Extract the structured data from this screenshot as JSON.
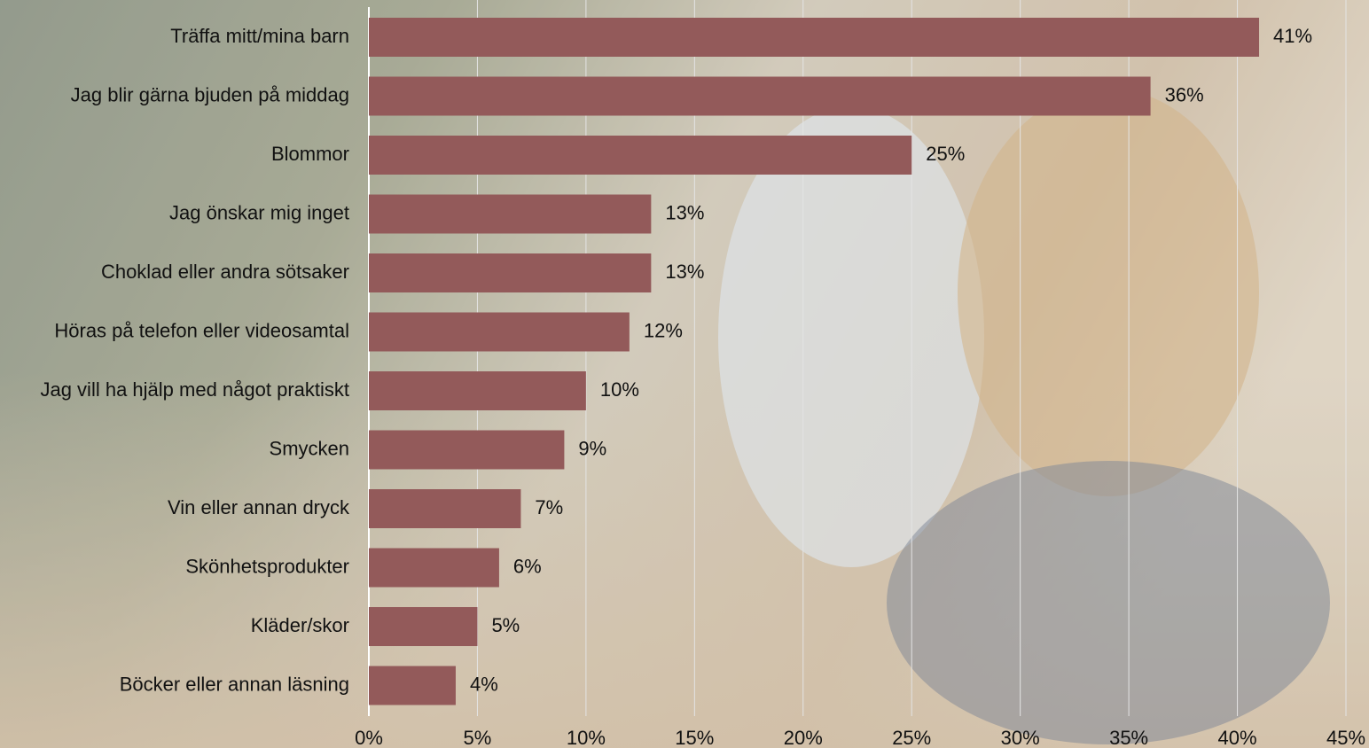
{
  "chart_data": {
    "type": "bar",
    "orientation": "horizontal",
    "categories": [
      "Träffa mitt/mina barn",
      "Jag blir gärna bjuden på middag",
      "Blommor",
      "Jag önskar mig inget",
      "Choklad eller andra sötsaker",
      "Höras på telefon eller videosamtal",
      "Jag vill ha hjälp med något praktiskt",
      "Smycken",
      "Vin eller annan dryck",
      "Skönhetsprodukter",
      "Kläder/skor",
      "Böcker eller annan läsning"
    ],
    "values": [
      41,
      36,
      25,
      13,
      13,
      12,
      10,
      9,
      7,
      6,
      5,
      4
    ],
    "value_labels": [
      "41%",
      "36%",
      "25%",
      "13%",
      "13%",
      "12%",
      "10%",
      "9%",
      "7%",
      "6%",
      "5%",
      "4%"
    ],
    "color": "#935a5a",
    "xlim": [
      0,
      45
    ],
    "xticks": [
      {
        "value": 0,
        "label": "0%"
      },
      {
        "value": 5,
        "label": "5%"
      },
      {
        "value": 10,
        "label": "10%"
      },
      {
        "value": 15,
        "label": "15%"
      },
      {
        "value": 20,
        "label": "20%"
      },
      {
        "value": 25,
        "label": "25%"
      },
      {
        "value": 30,
        "label": "30%"
      },
      {
        "value": 35,
        "label": "35%"
      },
      {
        "value": 40,
        "label": "40%"
      },
      {
        "value": 45,
        "label": "45%"
      }
    ],
    "grid": true
  }
}
